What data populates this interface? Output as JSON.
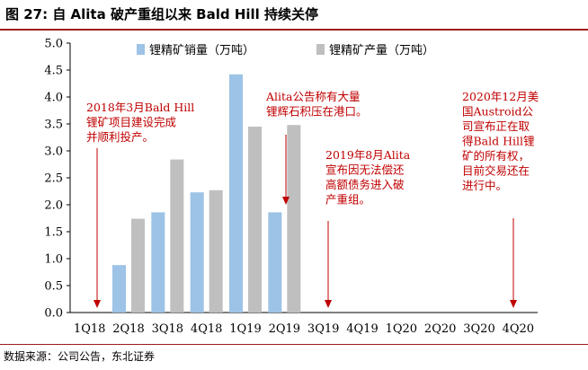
{
  "title": "图 27: 自 Alita 破产重组以来 Bald Hill 持续关停",
  "source": "数据来源：公司公告，东北证券",
  "chart_data": {
    "type": "bar",
    "categories": [
      "1Q18",
      "2Q18",
      "3Q18",
      "4Q18",
      "1Q19",
      "2Q19",
      "3Q19",
      "4Q19",
      "1Q20",
      "2Q20",
      "3Q20",
      "4Q20"
    ],
    "series": [
      {
        "name": "锂精矿销量（万吨）",
        "color": "#9dc3e6",
        "values": [
          null,
          0.88,
          1.86,
          2.23,
          4.42,
          1.86,
          null,
          null,
          null,
          null,
          null,
          null
        ]
      },
      {
        "name": "锂精矿产量（万吨）",
        "color": "#bfbfbf",
        "values": [
          null,
          1.74,
          2.84,
          2.27,
          3.45,
          3.48,
          null,
          null,
          null,
          null,
          null,
          null
        ]
      }
    ],
    "ylim": [
      0,
      5.0
    ],
    "yticks": [
      "0.0",
      "0.5",
      "1.0",
      "1.5",
      "2.0",
      "2.5",
      "3.0",
      "3.5",
      "4.0",
      "4.5",
      "5.0"
    ],
    "xlabel": "",
    "ylabel": "",
    "grid": false,
    "legend": "top",
    "annotations": [
      {
        "lines": [
          "2018年3月Bald Hill",
          "锂矿项目建设完成",
          "并顺利投产。"
        ],
        "category": "1Q18"
      },
      {
        "lines": [
          "Alita公告称有大量",
          "锂辉石积压在港口。"
        ],
        "category": "2Q19"
      },
      {
        "lines": [
          "2019年8月Alita",
          "宣布因无法偿还",
          "高额债务进入破",
          "产重组。"
        ],
        "category": "3Q19"
      },
      {
        "lines": [
          "2020年12月美",
          "国Austroid公",
          "司宣布正在取",
          "得Bald Hill锂",
          "矿的所有权，",
          "目前交易还在",
          "进行中。"
        ],
        "category": "4Q20"
      }
    ]
  }
}
